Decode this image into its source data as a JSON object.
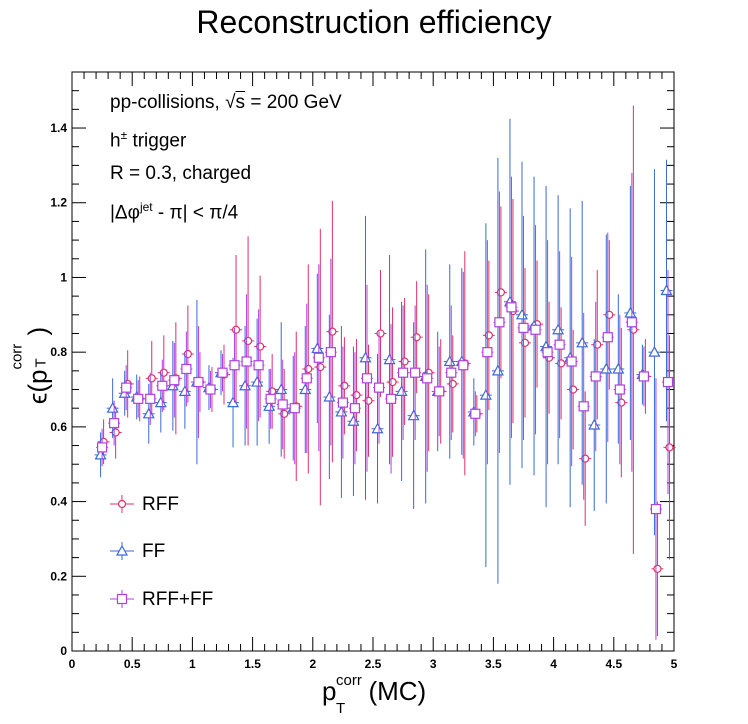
{
  "title": "Reconstruction efficiency",
  "annotations": {
    "line1_prefix": "pp-collisions, ",
    "line1_sqrt": "s",
    "line1_suffix": " = 200 GeV",
    "line2_base": "h",
    "line2_sup": "±",
    "line2_suffix": " trigger",
    "line3": "R = 0.3, charged",
    "line4_prefix": "|Δφ",
    "line4_sup": "jet",
    "line4_suffix": " - π| < π/4"
  },
  "axes": {
    "x_label_base": "p",
    "x_label_sup": "corr",
    "x_label_sub": "T",
    "x_label_suffix": "(MC)",
    "y_label": "ϵ(p",
    "y_label_sup": "corr",
    "y_label_sub": "T",
    "y_label_suffix": ")"
  },
  "chart_data": {
    "type": "scatter",
    "title": "Reconstruction efficiency",
    "xlim": [
      0,
      5
    ],
    "ylim": [
      0,
      1.55
    ],
    "x_ticks": [
      "0",
      "0.5",
      "1",
      "1.5",
      "2",
      "2.5",
      "3",
      "3.5",
      "4",
      "4.5",
      "5"
    ],
    "y_ticks": [
      "0",
      "0.2",
      "0.4",
      "0.6",
      "0.8",
      "1",
      "1.2",
      "1.4"
    ],
    "legend_position": "bottom-left",
    "series": [
      {
        "name": "RFF",
        "color": "#e0306a",
        "marker": "circle",
        "x": [
          0.25,
          0.35,
          0.45,
          0.55,
          0.65,
          0.75,
          0.85,
          0.95,
          1.05,
          1.15,
          1.25,
          1.35,
          1.45,
          1.55,
          1.65,
          1.75,
          1.85,
          1.95,
          2.05,
          2.15,
          2.25,
          2.35,
          2.45,
          2.55,
          2.65,
          2.75,
          2.85,
          2.95,
          3.05,
          3.15,
          3.25,
          3.35,
          3.45,
          3.55,
          3.65,
          3.75,
          3.85,
          3.95,
          4.05,
          4.15,
          4.25,
          4.35,
          4.45,
          4.55,
          4.65,
          4.75,
          4.85,
          4.95
        ],
        "y": [
          0.56,
          0.585,
          0.715,
          0.675,
          0.73,
          0.745,
          0.73,
          0.795,
          0.72,
          0.7,
          0.74,
          0.86,
          0.83,
          0.815,
          0.695,
          0.635,
          0.655,
          0.755,
          0.76,
          0.855,
          0.71,
          0.685,
          0.67,
          0.85,
          0.72,
          0.775,
          0.84,
          0.745,
          0.695,
          0.715,
          0.77,
          0.635,
          0.845,
          0.96,
          0.91,
          0.825,
          0.875,
          0.785,
          0.77,
          0.7,
          0.515,
          0.82,
          0.9,
          0.665,
          0.86,
          0.735,
          0.22,
          0.545
        ],
        "err": [
          0.06,
          0.07,
          0.09,
          0.06,
          0.1,
          0.1,
          0.15,
          0.13,
          0.08,
          0.06,
          0.08,
          0.2,
          0.28,
          0.19,
          0.1,
          0.12,
          0.2,
          0.28,
          0.37,
          0.35,
          0.13,
          0.15,
          0.15,
          0.17,
          0.2,
          0.17,
          0.15,
          0.21,
          0.14,
          0.13,
          0.3,
          0.05,
          0.2,
          0.23,
          0.3,
          0.2,
          0.17,
          0.15,
          0.15,
          0.16,
          0.18,
          0.2,
          0.2,
          0.2,
          0.6,
          0.1,
          0.18,
          0.3
        ]
      },
      {
        "name": "FF",
        "color": "#3a6ad4",
        "marker": "triangle",
        "x": [
          0.25,
          0.35,
          0.45,
          0.55,
          0.65,
          0.75,
          0.85,
          0.95,
          1.05,
          1.15,
          1.25,
          1.35,
          1.45,
          1.55,
          1.65,
          1.75,
          1.85,
          1.95,
          2.05,
          2.15,
          2.25,
          2.35,
          2.45,
          2.55,
          2.65,
          2.75,
          2.85,
          2.95,
          3.05,
          3.15,
          3.25,
          3.35,
          3.45,
          3.55,
          3.65,
          3.75,
          3.85,
          3.95,
          4.05,
          4.15,
          4.25,
          4.35,
          4.45,
          4.55,
          4.65,
          4.75,
          4.85,
          4.95
        ],
        "y": [
          0.525,
          0.65,
          0.69,
          0.68,
          0.635,
          0.665,
          0.71,
          0.695,
          0.72,
          0.705,
          0.745,
          0.665,
          0.71,
          0.72,
          0.655,
          0.7,
          0.65,
          0.7,
          0.81,
          0.68,
          0.64,
          0.615,
          0.785,
          0.595,
          0.78,
          0.695,
          0.63,
          0.735,
          0.695,
          0.775,
          0.775,
          0.64,
          0.685,
          0.75,
          0.935,
          0.9,
          0.87,
          0.815,
          0.86,
          0.785,
          0.825,
          0.605,
          0.755,
          0.755,
          0.905,
          0.74,
          0.8,
          0.965
        ],
        "err": [
          0.06,
          0.08,
          0.06,
          0.06,
          0.08,
          0.08,
          0.12,
          0.1,
          0.22,
          0.06,
          0.06,
          0.12,
          0.16,
          0.17,
          0.1,
          0.18,
          0.14,
          0.17,
          0.2,
          0.22,
          0.23,
          0.2,
          0.38,
          0.2,
          0.28,
          0.24,
          0.25,
          0.34,
          0.16,
          0.26,
          0.25,
          0.09,
          0.46,
          0.57,
          0.49,
          0.41,
          0.4,
          0.43,
          0.36,
          0.4,
          0.38,
          0.23,
          0.36,
          0.2,
          0.34,
          0.08,
          0.49,
          0.35
        ]
      },
      {
        "name": "RFF+FF",
        "color": "#b040e0",
        "marker": "square",
        "x": [
          0.25,
          0.35,
          0.45,
          0.55,
          0.65,
          0.75,
          0.85,
          0.95,
          1.05,
          1.15,
          1.25,
          1.35,
          1.45,
          1.55,
          1.65,
          1.75,
          1.85,
          1.95,
          2.05,
          2.15,
          2.25,
          2.35,
          2.45,
          2.55,
          2.65,
          2.75,
          2.85,
          2.95,
          3.05,
          3.15,
          3.25,
          3.35,
          3.45,
          3.55,
          3.65,
          3.75,
          3.85,
          3.95,
          4.05,
          4.15,
          4.25,
          4.35,
          4.45,
          4.55,
          4.65,
          4.75,
          4.85,
          4.95
        ],
        "y": [
          0.545,
          0.61,
          0.705,
          0.675,
          0.675,
          0.71,
          0.725,
          0.755,
          0.72,
          0.7,
          0.745,
          0.765,
          0.775,
          0.765,
          0.675,
          0.66,
          0.65,
          0.73,
          0.785,
          0.8,
          0.665,
          0.65,
          0.73,
          0.705,
          0.675,
          0.745,
          0.745,
          0.73,
          0.695,
          0.745,
          0.765,
          0.635,
          0.8,
          0.88,
          0.92,
          0.865,
          0.86,
          0.8,
          0.82,
          0.775,
          0.655,
          0.735,
          0.84,
          0.7,
          0.88,
          0.735,
          0.38,
          0.72
        ],
        "err": [
          0.05,
          0.06,
          0.06,
          0.05,
          0.07,
          0.07,
          0.1,
          0.1,
          0.15,
          0.05,
          0.05,
          0.1,
          0.18,
          0.15,
          0.08,
          0.12,
          0.15,
          0.2,
          0.25,
          0.25,
          0.15,
          0.15,
          0.25,
          0.15,
          0.2,
          0.18,
          0.18,
          0.25,
          0.12,
          0.18,
          0.25,
          0.06,
          0.3,
          0.35,
          0.35,
          0.3,
          0.28,
          0.3,
          0.25,
          0.28,
          0.25,
          0.2,
          0.28,
          0.2,
          0.4,
          0.08,
          0.35,
          0.3
        ]
      }
    ]
  }
}
